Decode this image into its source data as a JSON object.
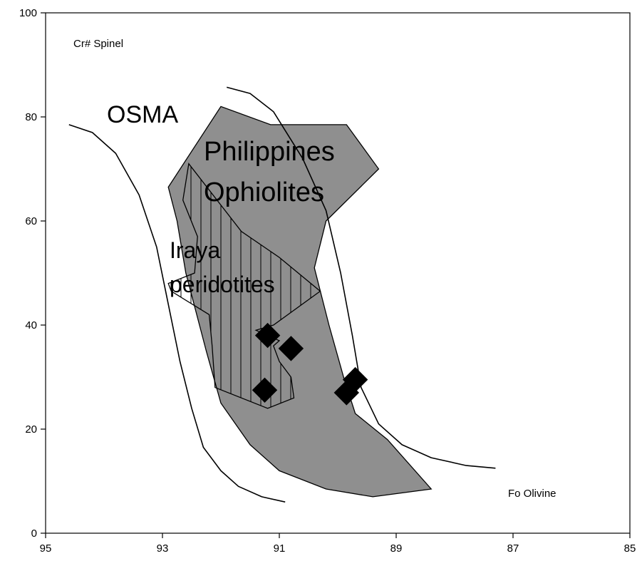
{
  "chart_data": {
    "type": "scatter",
    "x_axis": {
      "label": "Fo Olivine",
      "range": [
        95,
        85
      ],
      "reversed": true,
      "ticks": [
        95,
        93,
        91,
        89,
        87,
        85
      ],
      "tick_labels": [
        "95",
        "93",
        "91",
        "89",
        "87",
        "85"
      ]
    },
    "y_axis": {
      "label": "Cr# Spinel",
      "range": [
        0,
        100
      ],
      "ticks": [
        0,
        20,
        40,
        60,
        80,
        100
      ],
      "tick_labels": [
        "0",
        "20",
        "40",
        "60",
        "80",
        "100"
      ]
    },
    "grid": false,
    "annotations": {
      "osma": "OSMA",
      "philippines_line1": "Philippines",
      "philippines_line2": "Ophiolites",
      "iraya_line1": "Iraya",
      "iraya_line2": "peridotites"
    },
    "fields": {
      "osma_left_boundary": [
        [
          94.6,
          78.5
        ],
        [
          94.2,
          77
        ],
        [
          93.8,
          73
        ],
        [
          93.4,
          65
        ],
        [
          93.1,
          55
        ],
        [
          92.9,
          44
        ],
        [
          92.7,
          33
        ],
        [
          92.5,
          24
        ],
        [
          92.3,
          16.5
        ],
        [
          92.0,
          12
        ],
        [
          91.7,
          9
        ],
        [
          91.3,
          7
        ],
        [
          90.9,
          6
        ]
      ],
      "osma_right_boundary": [
        [
          91.9,
          85.7
        ],
        [
          91.5,
          84.5
        ],
        [
          91.1,
          81
        ],
        [
          90.6,
          72
        ],
        [
          90.2,
          62
        ],
        [
          89.95,
          50
        ],
        [
          89.75,
          38
        ],
        [
          89.6,
          28
        ],
        [
          89.3,
          21
        ],
        [
          88.9,
          17
        ],
        [
          88.4,
          14.5
        ],
        [
          87.8,
          13
        ],
        [
          87.3,
          12.5
        ]
      ],
      "philippines_ophiolites": [
        [
          92.9,
          66.5
        ],
        [
          92.0,
          82
        ],
        [
          91.15,
          78.5
        ],
        [
          89.85,
          78.5
        ],
        [
          89.3,
          70
        ],
        [
          90.2,
          60
        ],
        [
          90.4,
          51
        ],
        [
          90.15,
          40
        ],
        [
          89.9,
          30
        ],
        [
          89.7,
          23
        ],
        [
          89.15,
          18
        ],
        [
          88.4,
          8.5
        ],
        [
          89.4,
          7
        ],
        [
          90.2,
          8.5
        ],
        [
          91.0,
          12
        ],
        [
          91.5,
          17
        ],
        [
          92.0,
          25
        ],
        [
          92.25,
          35
        ],
        [
          92.6,
          50
        ],
        [
          92.75,
          60
        ],
        [
          92.9,
          66.5
        ]
      ],
      "iraya_peridotites": [
        [
          92.55,
          71
        ],
        [
          91.65,
          58
        ],
        [
          91.0,
          53
        ],
        [
          90.3,
          46.5
        ],
        [
          91.1,
          40
        ],
        [
          91.4,
          39
        ],
        [
          91.2,
          38
        ],
        [
          91.0,
          37
        ],
        [
          91.1,
          36
        ],
        [
          91.0,
          33
        ],
        [
          90.8,
          30
        ],
        [
          90.75,
          26
        ],
        [
          91.2,
          24
        ],
        [
          92.1,
          28
        ],
        [
          92.15,
          36
        ],
        [
          92.2,
          42
        ],
        [
          92.85,
          46.5
        ],
        [
          92.9,
          48
        ],
        [
          92.45,
          50
        ],
        [
          92.4,
          57
        ],
        [
          92.65,
          64
        ],
        [
          92.55,
          71
        ]
      ]
    },
    "series": [
      {
        "marker": "diamond",
        "points": [
          [
            91.2,
            38
          ],
          [
            90.8,
            35.5
          ],
          [
            91.25,
            27.5
          ],
          [
            89.85,
            27
          ],
          [
            89.7,
            29.5
          ]
        ]
      }
    ]
  }
}
